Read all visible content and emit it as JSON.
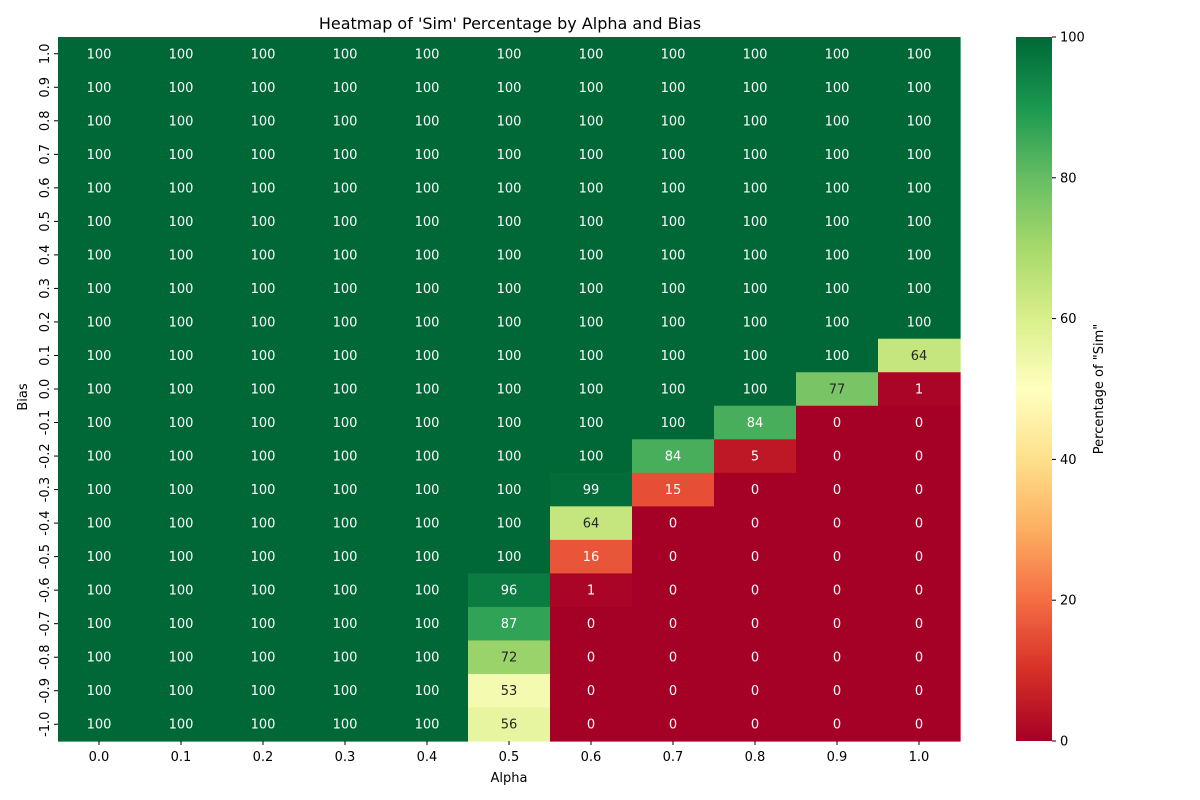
{
  "chart_data": {
    "type": "heatmap",
    "title": "Heatmap of 'Sim' Percentage by Alpha and Bias",
    "xlabel": "Alpha",
    "ylabel": "Bias",
    "x_categories": [
      "0.0",
      "0.1",
      "0.2",
      "0.3",
      "0.4",
      "0.5",
      "0.6",
      "0.7",
      "0.8",
      "0.9",
      "1.0"
    ],
    "y_categories": [
      "1.0",
      "0.9",
      "0.8",
      "0.7",
      "0.6",
      "0.5",
      "0.4",
      "0.3",
      "0.2",
      "0.1",
      "0.0",
      "-0.1",
      "-0.2",
      "-0.3",
      "-0.4",
      "-0.5",
      "-0.6",
      "-0.7",
      "-0.8",
      "-0.9",
      "-1.0"
    ],
    "values": [
      [
        100,
        100,
        100,
        100,
        100,
        100,
        100,
        100,
        100,
        100,
        100
      ],
      [
        100,
        100,
        100,
        100,
        100,
        100,
        100,
        100,
        100,
        100,
        100
      ],
      [
        100,
        100,
        100,
        100,
        100,
        100,
        100,
        100,
        100,
        100,
        100
      ],
      [
        100,
        100,
        100,
        100,
        100,
        100,
        100,
        100,
        100,
        100,
        100
      ],
      [
        100,
        100,
        100,
        100,
        100,
        100,
        100,
        100,
        100,
        100,
        100
      ],
      [
        100,
        100,
        100,
        100,
        100,
        100,
        100,
        100,
        100,
        100,
        100
      ],
      [
        100,
        100,
        100,
        100,
        100,
        100,
        100,
        100,
        100,
        100,
        100
      ],
      [
        100,
        100,
        100,
        100,
        100,
        100,
        100,
        100,
        100,
        100,
        100
      ],
      [
        100,
        100,
        100,
        100,
        100,
        100,
        100,
        100,
        100,
        100,
        100
      ],
      [
        100,
        100,
        100,
        100,
        100,
        100,
        100,
        100,
        100,
        100,
        64
      ],
      [
        100,
        100,
        100,
        100,
        100,
        100,
        100,
        100,
        100,
        77,
        1
      ],
      [
        100,
        100,
        100,
        100,
        100,
        100,
        100,
        100,
        84,
        0,
        0
      ],
      [
        100,
        100,
        100,
        100,
        100,
        100,
        100,
        84,
        5,
        0,
        0
      ],
      [
        100,
        100,
        100,
        100,
        100,
        100,
        99,
        15,
        0,
        0,
        0
      ],
      [
        100,
        100,
        100,
        100,
        100,
        100,
        64,
        0,
        0,
        0,
        0
      ],
      [
        100,
        100,
        100,
        100,
        100,
        100,
        16,
        0,
        0,
        0,
        0
      ],
      [
        100,
        100,
        100,
        100,
        100,
        96,
        1,
        0,
        0,
        0,
        0
      ],
      [
        100,
        100,
        100,
        100,
        100,
        87,
        0,
        0,
        0,
        0,
        0
      ],
      [
        100,
        100,
        100,
        100,
        100,
        72,
        0,
        0,
        0,
        0,
        0
      ],
      [
        100,
        100,
        100,
        100,
        100,
        53,
        0,
        0,
        0,
        0,
        0
      ],
      [
        100,
        100,
        100,
        100,
        100,
        56,
        0,
        0,
        0,
        0,
        0
      ]
    ],
    "colormap": "RdYlGn",
    "vmin": 0,
    "vmax": 100,
    "colorbar": {
      "label": "Percentage of \"Sim\"",
      "ticks": [
        0,
        20,
        40,
        60,
        80,
        100
      ]
    }
  }
}
